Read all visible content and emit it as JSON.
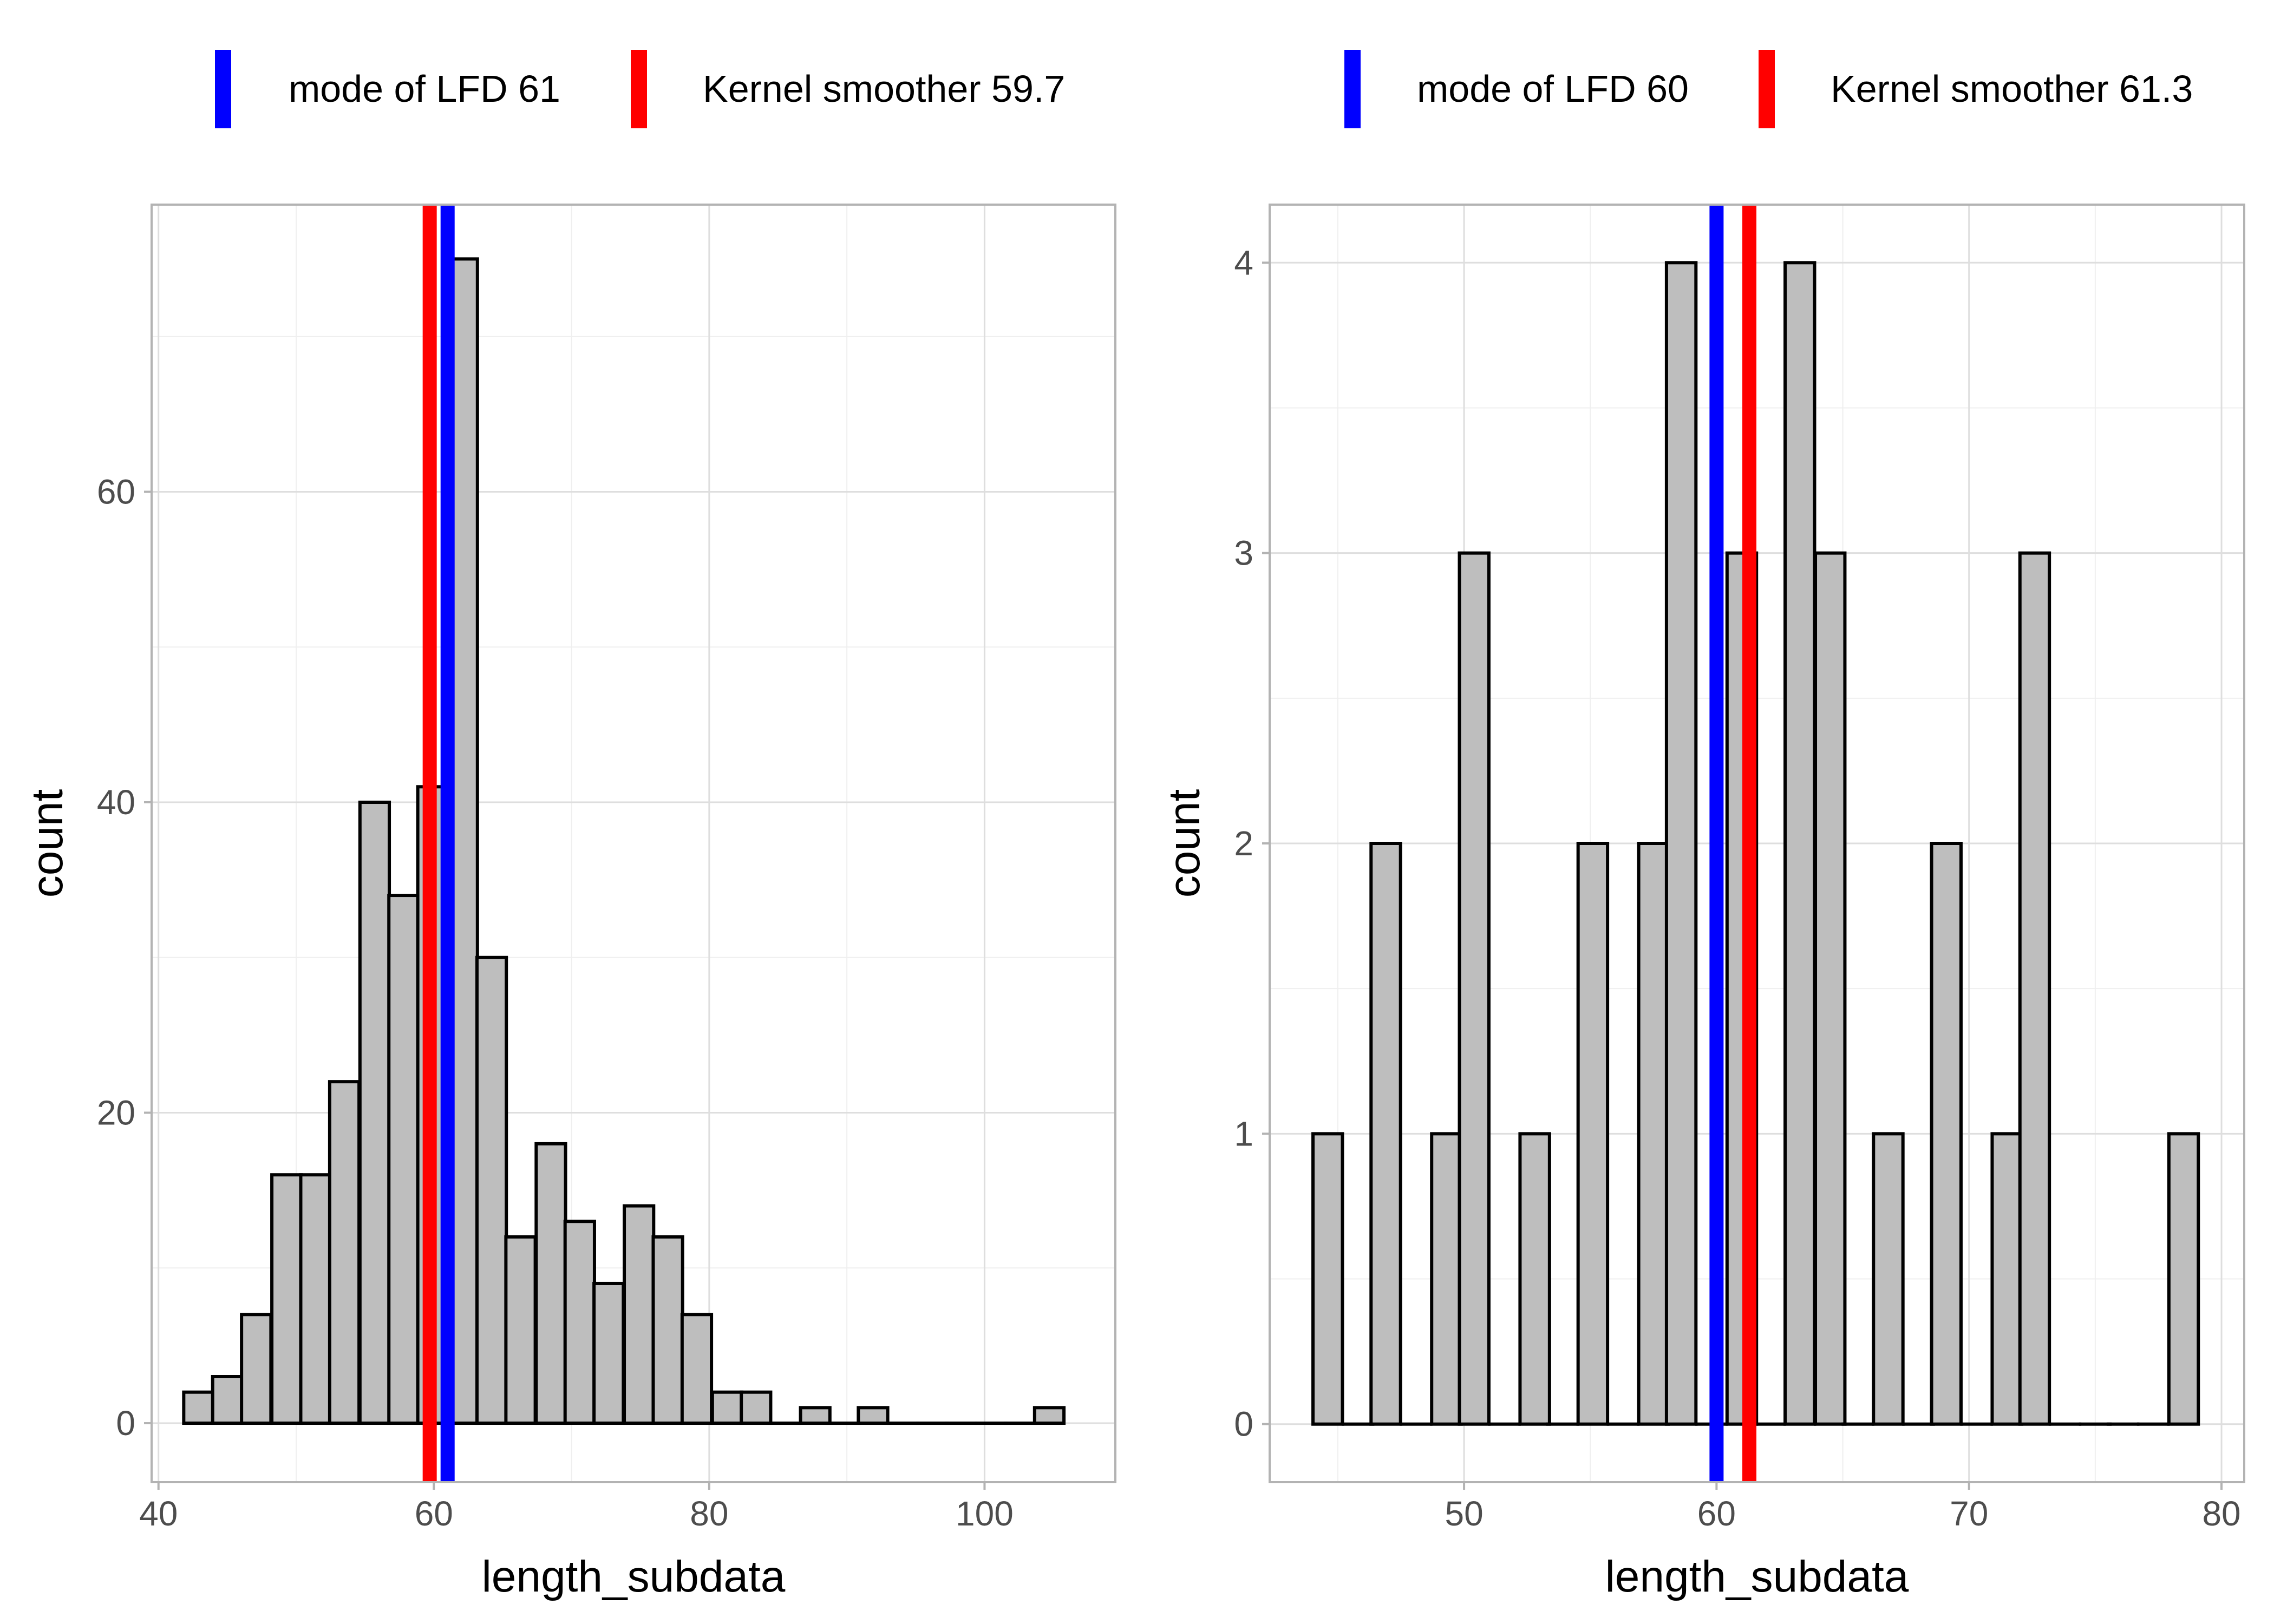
{
  "colors": {
    "bar_fill": "#bebebe",
    "bar_stroke": "#000000",
    "grid_major": "#dedede",
    "grid_minor": "#efefef",
    "panel_border": "#b3b3b3",
    "mode_line": "#0000ff",
    "kernel_line": "#ff0000"
  },
  "chart_data": [
    {
      "type": "bar",
      "subtype": "histogram",
      "xlabel": "length_subdata",
      "ylabel": "count",
      "xlim": [
        39.5,
        109.5
      ],
      "ylim": [
        -3.8,
        78.5
      ],
      "xticks": [
        40,
        60,
        80,
        100
      ],
      "xtick_labels": [
        "40",
        "60",
        "80",
        "100"
      ],
      "yticks": [
        0,
        20,
        40,
        60
      ],
      "ytick_labels": [
        "0",
        "20",
        "40",
        "60"
      ],
      "bin_width": 2.133,
      "bins": [
        {
          "x": 42.9,
          "count": 2
        },
        {
          "x": 45.0,
          "count": 3
        },
        {
          "x": 47.1,
          "count": 7
        },
        {
          "x": 49.3,
          "count": 16
        },
        {
          "x": 51.4,
          "count": 16
        },
        {
          "x": 53.5,
          "count": 22
        },
        {
          "x": 55.7,
          "count": 40
        },
        {
          "x": 57.8,
          "count": 34
        },
        {
          "x": 59.9,
          "count": 41
        },
        {
          "x": 62.1,
          "count": 75
        },
        {
          "x": 64.2,
          "count": 30
        },
        {
          "x": 66.3,
          "count": 12
        },
        {
          "x": 68.5,
          "count": 18
        },
        {
          "x": 70.6,
          "count": 13
        },
        {
          "x": 72.7,
          "count": 9
        },
        {
          "x": 74.9,
          "count": 14
        },
        {
          "x": 77.0,
          "count": 12
        },
        {
          "x": 79.1,
          "count": 7
        },
        {
          "x": 81.3,
          "count": 2
        },
        {
          "x": 83.4,
          "count": 2
        },
        {
          "x": 85.5,
          "count": 0
        },
        {
          "x": 87.7,
          "count": 1
        },
        {
          "x": 89.8,
          "count": 0
        },
        {
          "x": 91.9,
          "count": 1
        },
        {
          "x": 94.1,
          "count": 0
        },
        {
          "x": 96.2,
          "count": 0
        },
        {
          "x": 98.3,
          "count": 0
        },
        {
          "x": 100.5,
          "count": 0
        },
        {
          "x": 102.6,
          "count": 0
        },
        {
          "x": 104.7,
          "count": 1
        }
      ],
      "vlines": [
        {
          "name": "Kernel smoother",
          "x": 59.7,
          "color": "#ff0000"
        },
        {
          "name": "mode of LFD",
          "x": 61,
          "color": "#0000ff"
        }
      ],
      "legend": [
        {
          "label": "mode of LFD 61",
          "color": "#0000ff"
        },
        {
          "label": "Kernel smoother 59.7",
          "color": "#ff0000"
        }
      ],
      "legend_position": "top"
    },
    {
      "type": "bar",
      "subtype": "histogram",
      "xlabel": "length_subdata",
      "ylabel": "count",
      "xlim": [
        42.3,
        80.9
      ],
      "ylim": [
        -0.2,
        4.2
      ],
      "xticks": [
        50,
        60,
        70,
        80
      ],
      "xtick_labels": [
        "50",
        "60",
        "70",
        "80"
      ],
      "yticks": [
        0,
        1,
        2,
        3,
        4
      ],
      "ytick_labels": [
        "0",
        "1",
        "2",
        "3",
        "4"
      ],
      "bin_width": 1.167,
      "bins": [
        {
          "x": 44.6,
          "count": 1
        },
        {
          "x": 45.8,
          "count": 0
        },
        {
          "x": 46.9,
          "count": 2
        },
        {
          "x": 48.1,
          "count": 0
        },
        {
          "x": 49.3,
          "count": 1
        },
        {
          "x": 50.4,
          "count": 3
        },
        {
          "x": 51.6,
          "count": 0
        },
        {
          "x": 52.8,
          "count": 1
        },
        {
          "x": 53.9,
          "count": 0
        },
        {
          "x": 55.1,
          "count": 2
        },
        {
          "x": 56.3,
          "count": 0
        },
        {
          "x": 57.5,
          "count": 2
        },
        {
          "x": 58.6,
          "count": 4
        },
        {
          "x": 59.8,
          "count": 0
        },
        {
          "x": 61.0,
          "count": 3
        },
        {
          "x": 62.1,
          "count": 0
        },
        {
          "x": 63.3,
          "count": 4
        },
        {
          "x": 64.5,
          "count": 3
        },
        {
          "x": 65.6,
          "count": 0
        },
        {
          "x": 66.8,
          "count": 1
        },
        {
          "x": 68.0,
          "count": 0
        },
        {
          "x": 69.1,
          "count": 2
        },
        {
          "x": 70.3,
          "count": 0
        },
        {
          "x": 71.5,
          "count": 1
        },
        {
          "x": 72.6,
          "count": 3
        },
        {
          "x": 73.8,
          "count": 0
        },
        {
          "x": 75.0,
          "count": 0
        },
        {
          "x": 76.1,
          "count": 0
        },
        {
          "x": 77.3,
          "count": 0
        },
        {
          "x": 78.5,
          "count": 1
        }
      ],
      "vlines": [
        {
          "name": "mode of LFD",
          "x": 60,
          "color": "#0000ff"
        },
        {
          "name": "Kernel smoother",
          "x": 61.3,
          "color": "#ff0000"
        }
      ],
      "legend": [
        {
          "label": "mode of LFD 60",
          "color": "#0000ff"
        },
        {
          "label": "Kernel smoother 61.3",
          "color": "#ff0000"
        }
      ],
      "legend_position": "top"
    }
  ]
}
